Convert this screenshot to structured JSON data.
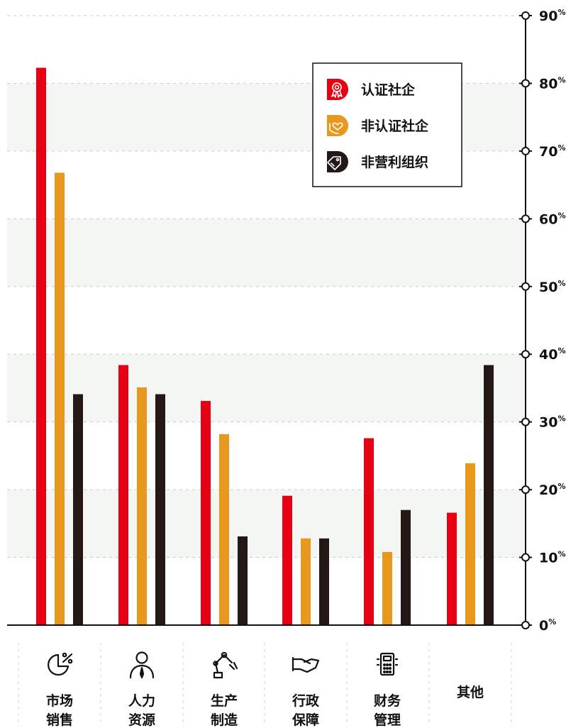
{
  "chart_data": {
    "type": "bar",
    "title": "",
    "xlabel": "",
    "ylabel": "",
    "ylim": [
      0,
      90
    ],
    "grid": true,
    "legend_position": "top-right",
    "y_ticks": [
      {
        "value": 0,
        "number": "0",
        "unit": "%"
      },
      {
        "value": 10,
        "number": "10",
        "unit": "%"
      },
      {
        "value": 20,
        "number": "20",
        "unit": "%"
      },
      {
        "value": 30,
        "number": "30",
        "unit": "%"
      },
      {
        "value": 40,
        "number": "40",
        "unit": "%"
      },
      {
        "value": 50,
        "number": "50",
        "unit": "%"
      },
      {
        "value": 60,
        "number": "60",
        "unit": "%"
      },
      {
        "value": 70,
        "number": "70",
        "unit": "%"
      },
      {
        "value": 80,
        "number": "80",
        "unit": "%"
      },
      {
        "value": 90,
        "number": "90",
        "unit": "%"
      }
    ],
    "categories": [
      {
        "lines": [
          "市场",
          "销售"
        ],
        "icon": "pie-chart-icon"
      },
      {
        "lines": [
          "人力",
          "资源"
        ],
        "icon": "person-icon"
      },
      {
        "lines": [
          "生产",
          "制造"
        ],
        "icon": "robot-arm-icon"
      },
      {
        "lines": [
          "行政",
          "保障"
        ],
        "icon": "handshake-icon"
      },
      {
        "lines": [
          "财务",
          "管理"
        ],
        "icon": "calculator-icon"
      },
      {
        "lines": [
          "其他"
        ],
        "icon": ""
      }
    ],
    "series": [
      {
        "name": "认证社企",
        "color": "#e60012",
        "icon": "ribbon-badge-icon",
        "values": [
          82.3,
          38.4,
          33.1,
          19.1,
          27.6,
          16.6
        ]
      },
      {
        "name": "非认证社企",
        "color": "#e8981c",
        "icon": "heart-hand-icon",
        "values": [
          66.8,
          35.1,
          28.2,
          12.8,
          10.8,
          23.9
        ]
      },
      {
        "name": "非营利组织",
        "color": "#231815",
        "icon": "tag-icon",
        "values": [
          34.1,
          34.1,
          13.1,
          12.8,
          17.0,
          38.4
        ]
      }
    ]
  }
}
